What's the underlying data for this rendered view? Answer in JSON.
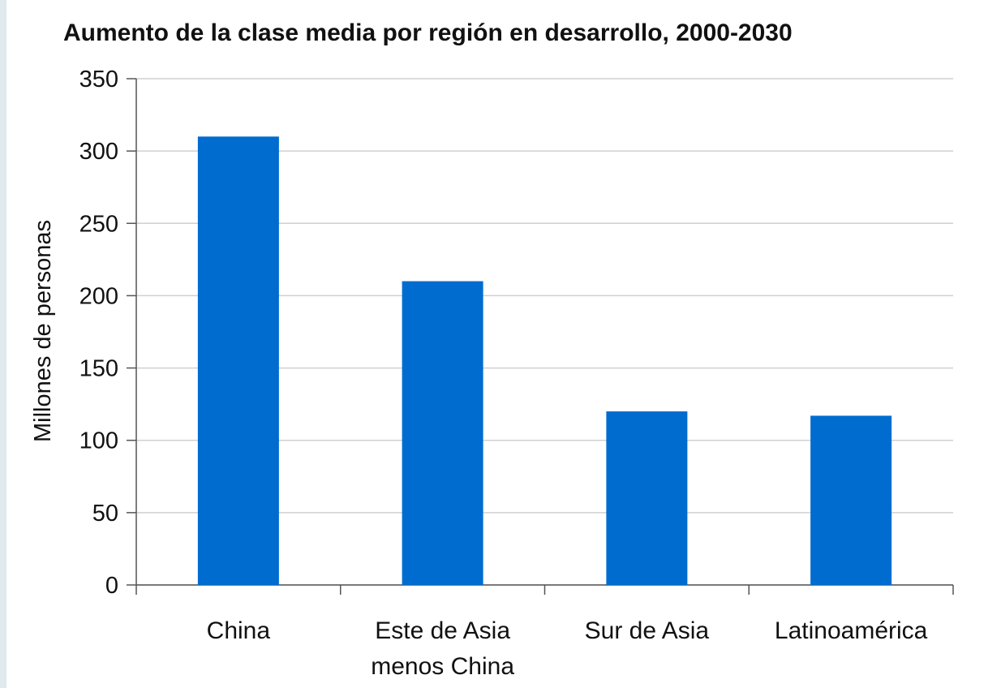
{
  "chart_data": {
    "type": "bar",
    "title": "Aumento de la clase media por región en desarrollo, 2000-2030",
    "y_label": "Millones de personas",
    "categories": [
      "China",
      "Este de Asia menos China",
      "Sur de Asia",
      "Latinoamérica"
    ],
    "values": [
      310,
      210,
      120,
      117
    ],
    "color": "#006ccf",
    "ylim": [
      0,
      350
    ],
    "yticks": [
      0,
      50,
      100,
      150,
      200,
      250,
      300,
      350
    ],
    "grid": true
  }
}
